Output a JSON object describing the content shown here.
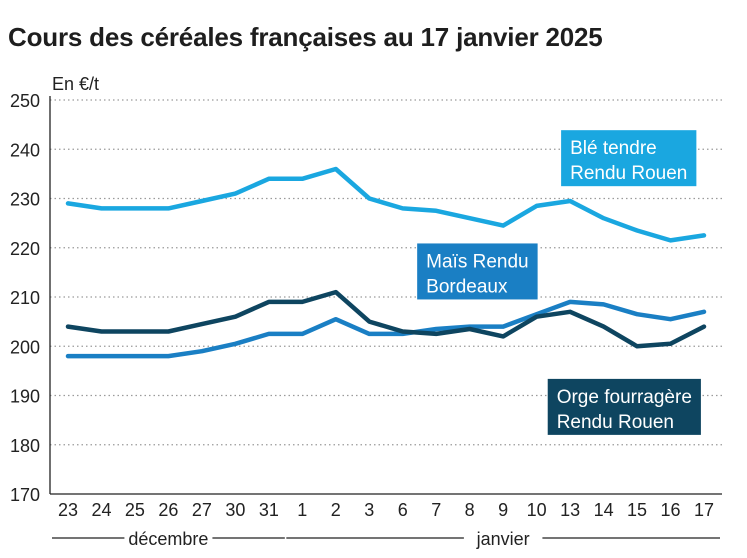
{
  "chart_data": {
    "type": "line",
    "title": "Cours des céréales françaises au 17 janvier 2025",
    "ylabel": "En €/t",
    "ylim": [
      170,
      250
    ],
    "yticks": [
      170,
      180,
      190,
      200,
      210,
      220,
      230,
      240,
      250
    ],
    "grid": "horizontal-dotted",
    "x": [
      "23",
      "24",
      "25",
      "26",
      "27",
      "30",
      "31",
      "1",
      "2",
      "3",
      "6",
      "7",
      "8",
      "9",
      "10",
      "13",
      "14",
      "15",
      "16",
      "17"
    ],
    "month_groups": [
      {
        "label": "décembre",
        "from": 0,
        "to": 6
      },
      {
        "label": "janvier",
        "from": 7,
        "to": 19
      }
    ],
    "series": [
      {
        "name": "Blé tendre Rendu Rouen",
        "label_lines": [
          "Blé tendre",
          "Rendu Rouen"
        ],
        "color": "#1aa7e0",
        "label_bg": "#1aa7e0",
        "label_anchor_index": 15,
        "label_anchor_value": 239,
        "values": [
          229,
          228,
          228,
          228,
          229.5,
          231,
          234,
          234,
          236,
          230,
          228,
          227.5,
          226,
          224.5,
          228.5,
          229.5,
          226,
          223.5,
          221.5,
          222.5
        ]
      },
      {
        "name": "Maïs Rendu Bordeaux",
        "label_lines": [
          "Maïs Rendu",
          "Bordeaux"
        ],
        "color": "#1a7fc4",
        "label_bg": "#1a7fc4",
        "label_anchor_index": 10.7,
        "label_anchor_value": 216,
        "values": [
          198,
          198,
          198,
          198,
          199,
          200.5,
          202.5,
          202.5,
          205.5,
          202.5,
          202.5,
          203.5,
          204,
          204,
          206.5,
          209,
          208.5,
          206.5,
          205.5,
          207
        ]
      },
      {
        "name": "Orge fourragère Rendu Rouen",
        "label_lines": [
          "Orge fourragère",
          "Rendu Rouen"
        ],
        "color": "#0e4560",
        "label_bg": "#0e4560",
        "label_anchor_index": 14.6,
        "label_anchor_value": 188.5,
        "values": [
          204,
          203,
          203,
          203,
          204.5,
          206,
          209,
          209,
          211,
          205,
          203,
          202.5,
          203.5,
          202,
          206,
          207,
          204,
          200,
          200.5,
          204
        ]
      }
    ]
  }
}
